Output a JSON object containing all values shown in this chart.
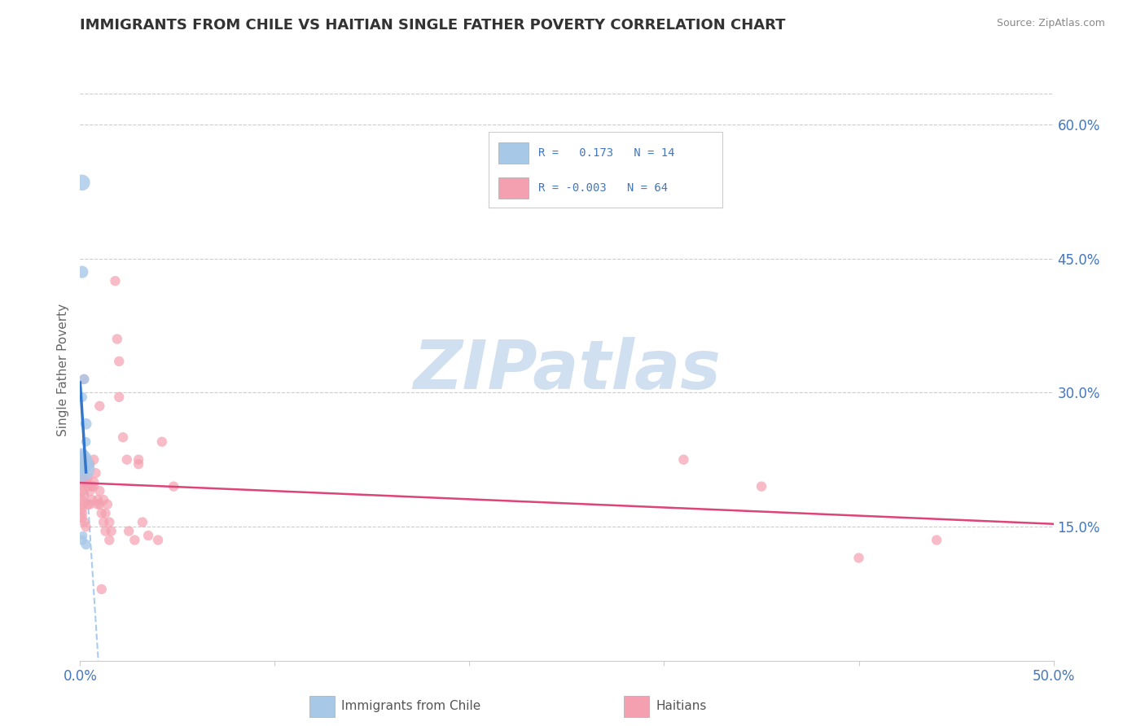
{
  "title": "IMMIGRANTS FROM CHILE VS HAITIAN SINGLE FATHER POVERTY CORRELATION CHART",
  "source": "Source: ZipAtlas.com",
  "ylabel": "Single Father Poverty",
  "xlim": [
    0.0,
    0.5
  ],
  "ylim": [
    0.0,
    0.65
  ],
  "yticks": [
    0.15,
    0.3,
    0.45,
    0.6
  ],
  "ytick_labels": [
    "15.0%",
    "30.0%",
    "45.0%",
    "60.0%"
  ],
  "blue_color": "#a8c8e8",
  "pink_color": "#f4a0b0",
  "regression_blue_solid": "#3377cc",
  "regression_blue_dash": "#aaccee",
  "regression_pink": "#dd4477",
  "watermark_color": "#d0e0f0",
  "blue_scatter": [
    [
      0.001,
      0.535
    ],
    [
      0.001,
      0.435
    ],
    [
      0.002,
      0.315
    ],
    [
      0.001,
      0.295
    ],
    [
      0.003,
      0.245
    ],
    [
      0.0015,
      0.14
    ],
    [
      0.001,
      0.215
    ],
    [
      0.001,
      0.22
    ],
    [
      0.001,
      0.225
    ],
    [
      0.002,
      0.22
    ],
    [
      0.001,
      0.23
    ],
    [
      0.003,
      0.265
    ],
    [
      0.001,
      0.135
    ],
    [
      0.003,
      0.13
    ]
  ],
  "blue_sizes": [
    200,
    120,
    80,
    80,
    70,
    60,
    500,
    400,
    300,
    200,
    150,
    100,
    80,
    80
  ],
  "pink_scatter": [
    [
      0.001,
      0.225
    ],
    [
      0.002,
      0.315
    ],
    [
      0.001,
      0.22
    ],
    [
      0.001,
      0.215
    ],
    [
      0.001,
      0.21
    ],
    [
      0.002,
      0.205
    ],
    [
      0.001,
      0.2
    ],
    [
      0.001,
      0.195
    ],
    [
      0.001,
      0.19
    ],
    [
      0.002,
      0.185
    ],
    [
      0.001,
      0.18
    ],
    [
      0.001,
      0.175
    ],
    [
      0.001,
      0.17
    ],
    [
      0.001,
      0.165
    ],
    [
      0.001,
      0.16
    ],
    [
      0.002,
      0.155
    ],
    [
      0.003,
      0.15
    ],
    [
      0.003,
      0.2
    ],
    [
      0.004,
      0.175
    ],
    [
      0.004,
      0.205
    ],
    [
      0.004,
      0.195
    ],
    [
      0.005,
      0.175
    ],
    [
      0.005,
      0.19
    ],
    [
      0.005,
      0.22
    ],
    [
      0.006,
      0.18
    ],
    [
      0.006,
      0.195
    ],
    [
      0.007,
      0.2
    ],
    [
      0.007,
      0.195
    ],
    [
      0.007,
      0.225
    ],
    [
      0.008,
      0.21
    ],
    [
      0.009,
      0.18
    ],
    [
      0.009,
      0.175
    ],
    [
      0.01,
      0.19
    ],
    [
      0.01,
      0.285
    ],
    [
      0.01,
      0.175
    ],
    [
      0.011,
      0.08
    ],
    [
      0.011,
      0.165
    ],
    [
      0.012,
      0.155
    ],
    [
      0.012,
      0.18
    ],
    [
      0.013,
      0.145
    ],
    [
      0.013,
      0.165
    ],
    [
      0.014,
      0.175
    ],
    [
      0.015,
      0.135
    ],
    [
      0.015,
      0.155
    ],
    [
      0.016,
      0.145
    ],
    [
      0.018,
      0.425
    ],
    [
      0.019,
      0.36
    ],
    [
      0.02,
      0.335
    ],
    [
      0.02,
      0.295
    ],
    [
      0.022,
      0.25
    ],
    [
      0.024,
      0.225
    ],
    [
      0.025,
      0.145
    ],
    [
      0.028,
      0.135
    ],
    [
      0.03,
      0.22
    ],
    [
      0.03,
      0.225
    ],
    [
      0.032,
      0.155
    ],
    [
      0.035,
      0.14
    ],
    [
      0.04,
      0.135
    ],
    [
      0.042,
      0.245
    ],
    [
      0.048,
      0.195
    ],
    [
      0.31,
      0.225
    ],
    [
      0.35,
      0.195
    ],
    [
      0.4,
      0.115
    ],
    [
      0.44,
      0.135
    ]
  ],
  "pink_size": 80,
  "background_color": "#ffffff",
  "grid_color": "#cccccc",
  "tick_color": "#4477bb"
}
